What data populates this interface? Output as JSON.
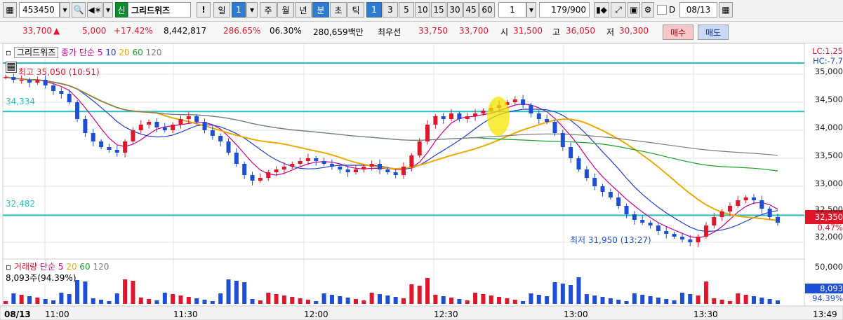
{
  "toolbar": {
    "code": "453450",
    "badge": "신",
    "stock_name": "그리드위즈",
    "warn": "!",
    "period_day": "일",
    "period_day_num": "1",
    "period_week": "주",
    "period_month": "월",
    "period_year": "년",
    "period_min": "분",
    "period_sec": "초",
    "period_tick": "틱",
    "intervals": [
      "1",
      "3",
      "5",
      "10",
      "15",
      "30",
      "45",
      "60"
    ],
    "interval_input": "1",
    "count": "179/900",
    "date": "08/13",
    "d_label": "D"
  },
  "quote": {
    "price": "33,700",
    "arrow": "▲",
    "change": "5,000",
    "pct": "+17.42%",
    "volume": "8,442,817",
    "vol_ratio": "286.65%",
    "time": "06.30%",
    "amount": "280,659백만",
    "best_label": "최우선",
    "best_ask": "33,750",
    "best_bid": "33,700",
    "open_label": "시",
    "open": "31,500",
    "high_label": "고",
    "high": "36,050",
    "low_label": "저",
    "low": "30,300",
    "buy": "매수",
    "sell": "매도"
  },
  "legend": {
    "name": "그리드위즈",
    "ma_label": "종가 단순",
    "ma": [
      "5",
      "10",
      "20",
      "60",
      "120"
    ],
    "colors": [
      "#1f3fcf",
      "#1f3fcf",
      "#f0a800",
      "#18a028",
      "#7a7a7a"
    ]
  },
  "vol_legend": {
    "name": "거래량",
    "ma_label": "단순",
    "ma": [
      "5",
      "20",
      "60",
      "120"
    ],
    "current": "8,093주(94.39%)"
  },
  "annotations": {
    "high": "최고 35,050 (10:51)",
    "low": "최저 31,950 (13:27)",
    "line1": "34,334",
    "line2": "32,482"
  },
  "axis": {
    "price_ticks": [
      "35,000",
      "34,500",
      "34,000",
      "33,500",
      "33,000",
      "32,500",
      "32,000"
    ],
    "lc": "LC:1.25",
    "hc": "HC:-7.7",
    "current_price": "32,350",
    "current_pct": "0.47%",
    "vol_ticks": [
      "50,000",
      "8,093",
      "94.39%"
    ],
    "time_ticks": [
      "08/13",
      "11:00",
      "11:30",
      "12:00",
      "12:30",
      "13:00",
      "13:30",
      "13:49"
    ]
  },
  "chart_data": {
    "type": "candlestick",
    "x_start": "10:51",
    "x_end": "13:49",
    "interval": "1분",
    "ylim": [
      31800,
      35300
    ],
    "y_ticks": [
      35000,
      34500,
      34000,
      33500,
      33000,
      32500,
      32000
    ],
    "key_prices": {
      "high": 35050,
      "low": 31950,
      "current": 32350,
      "line1": 34334,
      "line2": 32482
    },
    "series_close": [
      34950,
      34900,
      34900,
      34850,
      34900,
      34800,
      34700,
      34650,
      34500,
      34200,
      33950,
      33800,
      33700,
      33650,
      33600,
      33800,
      34000,
      34100,
      34150,
      34050,
      34000,
      34100,
      34200,
      34250,
      34150,
      34000,
      33900,
      33800,
      33600,
      33400,
      33200,
      33100,
      33150,
      33250,
      33300,
      33350,
      33400,
      33450,
      33500,
      33450,
      33400,
      33350,
      33300,
      33250,
      33300,
      33350,
      33400,
      33300,
      33250,
      33200,
      33350,
      33550,
      33800,
      34100,
      34250,
      34200,
      34300,
      34200,
      34250,
      34300,
      34350,
      34400,
      34450,
      34500,
      34550,
      34450,
      34300,
      34200,
      34150,
      33950,
      33700,
      33500,
      33300,
      33150,
      33000,
      32900,
      32800,
      32650,
      32500,
      32400,
      32350,
      32300,
      32200,
      32150,
      32100,
      32050,
      32000,
      32100,
      32300,
      32450,
      32550,
      32650,
      32750,
      32800,
      32750,
      32600,
      32450,
      32350
    ]
  }
}
